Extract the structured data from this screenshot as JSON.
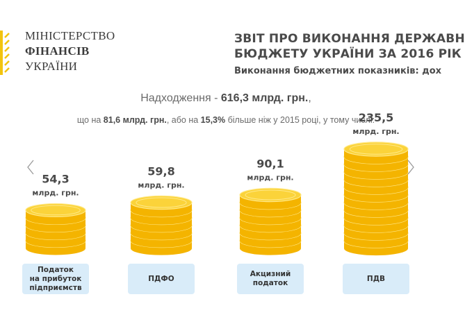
{
  "logo": {
    "line1": "МІНІСТЕРСТВО",
    "line2": "ФІНАНСІВ",
    "line3": "УКРАЇНИ",
    "accent": "#f2c40f"
  },
  "header": {
    "title_line1": "ЗВІТ ПРО ВИКОНАННЯ ДЕРЖАВН",
    "title_line2": "БЮДЖЕТУ УКРАЇНИ ЗА 2016 РІК",
    "subtitle": "Виконання бюджетних показників: дох"
  },
  "summary": {
    "total_prefix": "Надходження - ",
    "total_value": "616,3 млрд. грн.",
    "total_suffix": ",",
    "delta_prefix": "що на ",
    "delta_abs": "81,6 млрд. грн.",
    "delta_mid": ", або на ",
    "delta_pct": "15,3%",
    "delta_suffix": " більше ніж у 2015 році, у тому числі:"
  },
  "colors": {
    "coin_top": "#fbd33a",
    "coin_side": "#f4b400",
    "coin_rim": "#ffe98a",
    "category_box": "#d9ecf9"
  },
  "nav": {
    "prev_icon": "chevron-left-icon",
    "next_icon": "chevron-right-icon"
  },
  "chart_data": {
    "type": "bar",
    "title": "",
    "unit": "млрд. грн.",
    "categories": [
      "Податок\nна прибуток\nпідприємств",
      "ПДФО",
      "Акцизний\nподаток",
      "ПДВ"
    ],
    "values": [
      54.3,
      59.8,
      90.1,
      235.5
    ],
    "value_labels": [
      "54,3",
      "59,8",
      "90,1",
      "235,5"
    ]
  }
}
